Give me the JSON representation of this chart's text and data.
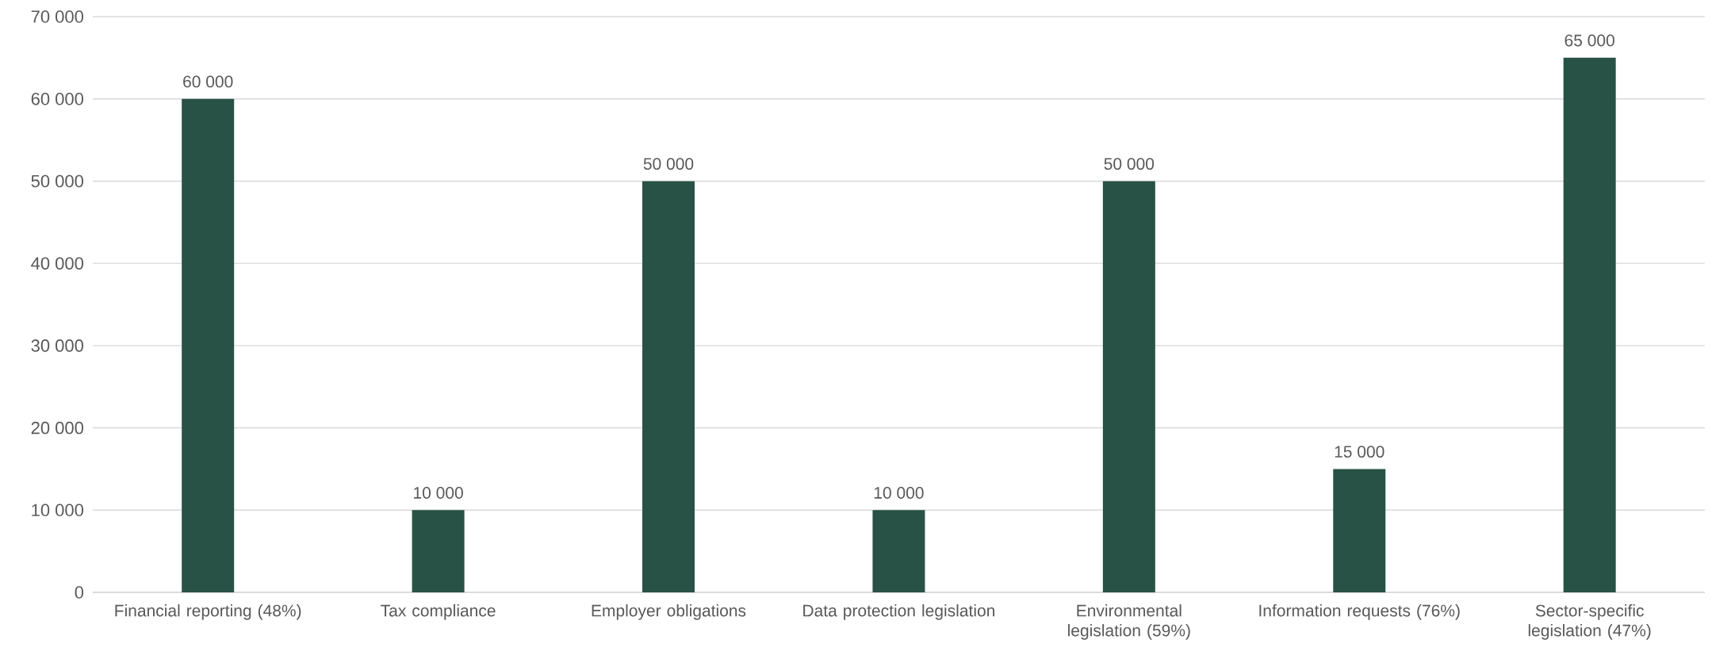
{
  "chart_data": {
    "type": "bar",
    "categories": [
      "Financial reporting (48%)",
      "Tax compliance",
      "Employer obligations",
      "Data protection legislation",
      "Environmental legislation (59%)",
      "Information requests (76%)",
      "Sector-specific legislation (47%)"
    ],
    "values": [
      60000,
      10000,
      50000,
      10000,
      50000,
      15000,
      65000
    ],
    "value_labels": [
      "60 000",
      "10 000",
      "50 000",
      "10 000",
      "50 000",
      "15 000",
      "65 000"
    ],
    "color": "#285246",
    "ylim": [
      0,
      70000
    ],
    "yticks": [
      {
        "value": 0,
        "label": "0"
      },
      {
        "value": 10000,
        "label": "10 000"
      },
      {
        "value": 20000,
        "label": "20 000"
      },
      {
        "value": 30000,
        "label": "30 000"
      },
      {
        "value": 40000,
        "label": "40 000"
      },
      {
        "value": 50000,
        "label": "50 000"
      },
      {
        "value": 60000,
        "label": "60 000"
      },
      {
        "value": 70000,
        "label": "70 000"
      }
    ],
    "grid": "y"
  }
}
